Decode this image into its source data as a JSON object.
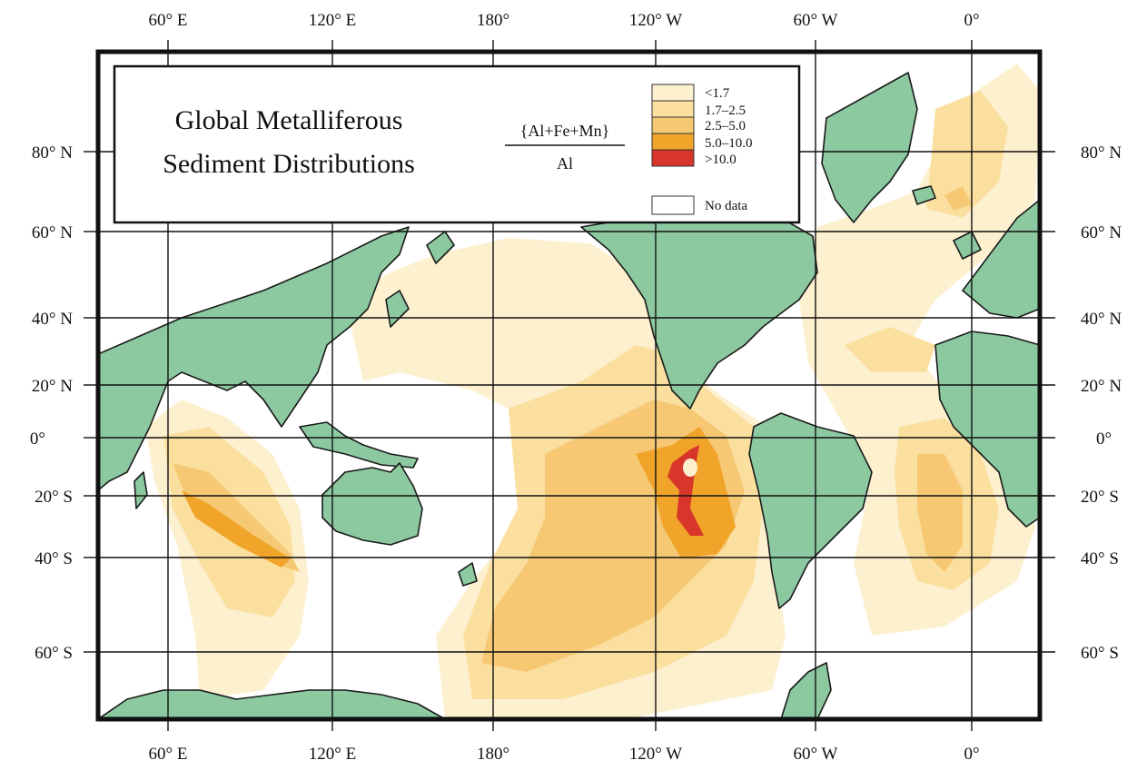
{
  "title_line1": "Global Metalliferous",
  "title_line2": "Sediment Distributions",
  "ratio": {
    "numerator": "{Al+Fe+Mn}",
    "denominator": "Al"
  },
  "legend": [
    {
      "label": "<1.7",
      "color": "#fdf0cf"
    },
    {
      "label": "1.7–2.5",
      "color": "#fbdf9f"
    },
    {
      "label": "2.5–5.0",
      "color": "#f6c874"
    },
    {
      "label": "5.0–10.0",
      "color": "#f0a52a"
    },
    {
      "label": ">10.0",
      "color": "#d9362b"
    },
    {
      "label": "No data",
      "color": "#ffffff"
    }
  ],
  "colors": {
    "land": "#8cc9a0",
    "coast": "#1a1a1a",
    "frame": "#111111"
  },
  "longitude_ticks": [
    "60° E",
    "120° E",
    "180°",
    "120° W",
    "60° W",
    "0°"
  ],
  "latitude_ticks": [
    "80° N",
    "60° N",
    "40° N",
    "20° N",
    "0°",
    "20° S",
    "40° S",
    "60° S"
  ]
}
